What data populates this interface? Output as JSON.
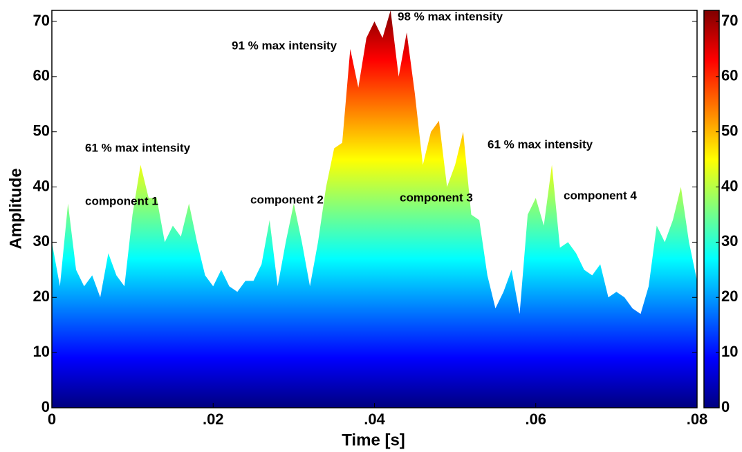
{
  "chart_data": {
    "type": "area",
    "colormap": "jet",
    "xlabel": "Time [s]",
    "ylabel": "Amplitude",
    "xlim": [
      0,
      0.08
    ],
    "xticks": [
      0,
      {
        "value": 0.02,
        "label": ".02"
      },
      {
        "value": 0.04,
        "label": ".04"
      },
      {
        "value": 0.06,
        "label": ".06"
      },
      {
        "value": 0.08,
        "label": ".08"
      }
    ],
    "ylim": [
      0,
      72
    ],
    "yticks": [
      0,
      10,
      20,
      30,
      40,
      50,
      60,
      70
    ],
    "colorbar": {
      "lim": [
        0,
        72
      ],
      "ticks": [
        0,
        10,
        20,
        30,
        40,
        50,
        60,
        70
      ]
    },
    "annotations": [
      "98 % max intensity",
      "91 % max intensity",
      "61 % max intensity",
      "61 % max intensity",
      "component 1",
      "component 2",
      "component 3",
      "component 4"
    ],
    "x": [
      0,
      0.001,
      0.002,
      0.003,
      0.004,
      0.005,
      0.006,
      0.007,
      0.008,
      0.009,
      0.01,
      0.011,
      0.012,
      0.013,
      0.014,
      0.015,
      0.016,
      0.017,
      0.018,
      0.019,
      0.02,
      0.021,
      0.022,
      0.023,
      0.024,
      0.025,
      0.026,
      0.027,
      0.028,
      0.029,
      0.03,
      0.031,
      0.032,
      0.033,
      0.034,
      0.035,
      0.036,
      0.037,
      0.038,
      0.039,
      0.04,
      0.041,
      0.042,
      0.043,
      0.044,
      0.045,
      0.046,
      0.047,
      0.048,
      0.049,
      0.05,
      0.051,
      0.052,
      0.053,
      0.054,
      0.055,
      0.056,
      0.057,
      0.058,
      0.059,
      0.06,
      0.061,
      0.062,
      0.063,
      0.064,
      0.065,
      0.066,
      0.067,
      0.068,
      0.069,
      0.07,
      0.071,
      0.072,
      0.073,
      0.074,
      0.075,
      0.076,
      0.077,
      0.078,
      0.079,
      0.08
    ],
    "values": [
      30,
      22,
      37,
      25,
      22,
      24,
      20,
      28,
      24,
      22,
      35,
      44,
      38,
      38,
      30,
      33,
      31,
      37,
      30,
      24,
      22,
      25,
      22,
      21,
      23,
      23,
      26,
      34,
      22,
      30,
      37,
      30,
      22,
      30,
      40,
      47,
      48,
      65,
      58,
      67,
      70,
      67,
      72,
      60,
      68,
      57,
      44,
      50,
      52,
      40,
      44,
      50,
      35,
      34,
      24,
      18,
      21,
      25,
      17,
      35,
      38,
      33,
      44,
      29,
      30,
      28,
      25,
      24,
      26,
      20,
      21,
      20,
      18,
      17,
      22,
      33,
      30,
      34,
      40,
      30,
      23
    ]
  }
}
